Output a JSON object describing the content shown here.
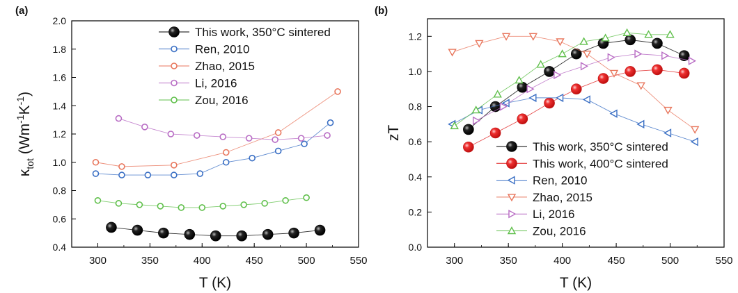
{
  "chart_data": [
    {
      "panel": "(a)",
      "type": "scatter",
      "xlabel": "T (K)",
      "ylabel": "κtot (Wm-1K-1)",
      "ylabel_main": "κ",
      "ylabel_sub": "tot",
      "ylabel_rest": " (Wm",
      "ylabel_exp1": "-1",
      "ylabel_mid": "K",
      "ylabel_exp2": "-1",
      "ylabel_end": ")",
      "xlim": [
        275,
        550
      ],
      "ylim": [
        0.4,
        2.0
      ],
      "xticks": [
        "300",
        "350",
        "400",
        "450",
        "500",
        "550"
      ],
      "yticks": [
        "0.4",
        "0.6",
        "0.8",
        "1.0",
        "1.2",
        "1.4",
        "1.6",
        "1.8",
        "2.0"
      ],
      "grid": false,
      "legend_position": "top-right",
      "series": [
        {
          "name": "This work, 350°C sintered",
          "color": "#000000",
          "marker": "filled-circle",
          "x": [
            313,
            338,
            363,
            388,
            413,
            438,
            463,
            488,
            513
          ],
          "y": [
            0.54,
            0.52,
            0.5,
            0.49,
            0.48,
            0.48,
            0.49,
            0.5,
            0.52
          ]
        },
        {
          "name": "Ren, 2010",
          "color": "#3a6fc4",
          "marker": "open-circle",
          "x": [
            298,
            323,
            348,
            373,
            398,
            423,
            448,
            473,
            498,
            523
          ],
          "y": [
            0.92,
            0.91,
            0.91,
            0.91,
            0.92,
            1.0,
            1.03,
            1.08,
            1.13,
            1.28
          ]
        },
        {
          "name": "Zhao, 2015",
          "color": "#e8765c",
          "marker": "open-circle",
          "x": [
            298,
            323,
            373,
            423,
            473,
            530
          ],
          "y": [
            1.0,
            0.97,
            0.98,
            1.07,
            1.21,
            1.5
          ]
        },
        {
          "name": "Li, 2016",
          "color": "#b86cc4",
          "marker": "open-circle",
          "x": [
            320,
            345,
            370,
            395,
            420,
            445,
            470,
            495,
            520
          ],
          "y": [
            1.31,
            1.25,
            1.2,
            1.19,
            1.18,
            1.17,
            1.16,
            1.17,
            1.19
          ]
        },
        {
          "name": "Zou, 2016",
          "color": "#5fbf4a",
          "marker": "open-circle",
          "x": [
            300,
            320,
            340,
            360,
            380,
            400,
            420,
            440,
            460,
            480,
            500
          ],
          "y": [
            0.73,
            0.71,
            0.7,
            0.69,
            0.68,
            0.68,
            0.69,
            0.7,
            0.71,
            0.73,
            0.75
          ]
        }
      ]
    },
    {
      "panel": "(b)",
      "type": "scatter",
      "xlabel": "T (K)",
      "ylabel": "zT",
      "xlim": [
        275,
        550
      ],
      "ylim": [
        0.0,
        1.3
      ],
      "xticks": [
        "300",
        "350",
        "400",
        "450",
        "500",
        "550"
      ],
      "yticks": [
        "0.0",
        "0.2",
        "0.4",
        "0.6",
        "0.8",
        "1.0",
        "1.2"
      ],
      "grid": false,
      "legend_position": "bottom-right",
      "series": [
        {
          "name": "This work, 350°C sintered",
          "color": "#000000",
          "marker": "filled-circle",
          "x": [
            313,
            338,
            363,
            388,
            413,
            438,
            463,
            488,
            513
          ],
          "y": [
            0.67,
            0.8,
            0.91,
            1.0,
            1.1,
            1.16,
            1.18,
            1.16,
            1.09
          ]
        },
        {
          "name": "This work, 400°C sintered",
          "color": "#e02020",
          "marker": "filled-circle",
          "x": [
            313,
            338,
            363,
            388,
            413,
            438,
            463,
            488,
            513
          ],
          "y": [
            0.57,
            0.65,
            0.73,
            0.82,
            0.9,
            0.96,
            1.0,
            1.01,
            0.99
          ]
        },
        {
          "name": "Ren, 2010",
          "color": "#3a6fc4",
          "marker": "triangle-left",
          "x": [
            298,
            323,
            348,
            373,
            398,
            423,
            448,
            473,
            498,
            523
          ],
          "y": [
            0.7,
            0.78,
            0.82,
            0.85,
            0.85,
            0.84,
            0.76,
            0.7,
            0.65,
            0.6
          ]
        },
        {
          "name": "Zhao, 2015",
          "color": "#e8765c",
          "marker": "triangle-down",
          "x": [
            298,
            323,
            348,
            373,
            398,
            423,
            448,
            473,
            498,
            523
          ],
          "y": [
            1.11,
            1.16,
            1.2,
            1.2,
            1.17,
            1.1,
            0.99,
            0.92,
            0.78,
            0.67
          ]
        },
        {
          "name": "Li, 2016",
          "color": "#b86cc4",
          "marker": "triangle-right",
          "x": [
            320,
            345,
            370,
            395,
            420,
            445,
            470,
            495,
            520
          ],
          "y": [
            0.72,
            0.8,
            0.9,
            0.98,
            1.03,
            1.08,
            1.1,
            1.09,
            1.06
          ]
        },
        {
          "name": "Zou, 2016",
          "color": "#5fbf4a",
          "marker": "triangle-up",
          "x": [
            300,
            320,
            340,
            360,
            380,
            400,
            420,
            440,
            460,
            480,
            500
          ],
          "y": [
            0.69,
            0.78,
            0.87,
            0.95,
            1.04,
            1.1,
            1.17,
            1.19,
            1.22,
            1.21,
            1.21
          ]
        }
      ]
    }
  ]
}
